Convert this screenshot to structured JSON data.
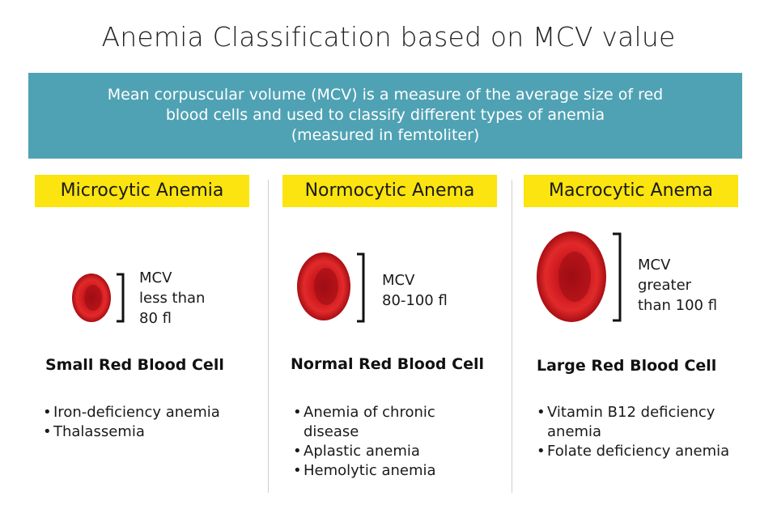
{
  "title": "Anemia Classification based on MCV value",
  "banner": {
    "lines": [
      "Mean corpuscular volume (MCV) is a measure of the average size of red",
      "blood cells and used to classify different types of anemia",
      "(measured in femtoliter)"
    ]
  },
  "columns": [
    {
      "header": "Microcytic Anemia",
      "mcv": [
        "MCV",
        "less than",
        "80 fl"
      ],
      "cell_label": "Small Red Blood Cell",
      "examples": [
        "Iron-deficiency anemia",
        "Thalassemia"
      ]
    },
    {
      "header": "Normocytic Anema",
      "mcv": [
        "MCV",
        "80-100 fl"
      ],
      "cell_label": "Normal Red Blood Cell",
      "examples": [
        "Anemia of chronic disease",
        "Aplastic anemia",
        "Hemolytic anemia"
      ]
    },
    {
      "header": "Macrocytic Anema",
      "mcv": [
        "MCV",
        "greater",
        "than 100 fl"
      ],
      "cell_label": "Large Red Blood Cell",
      "examples": [
        "Vitamin B12 deficiency anemia",
        "Folate deficiency anemia"
      ]
    }
  ]
}
